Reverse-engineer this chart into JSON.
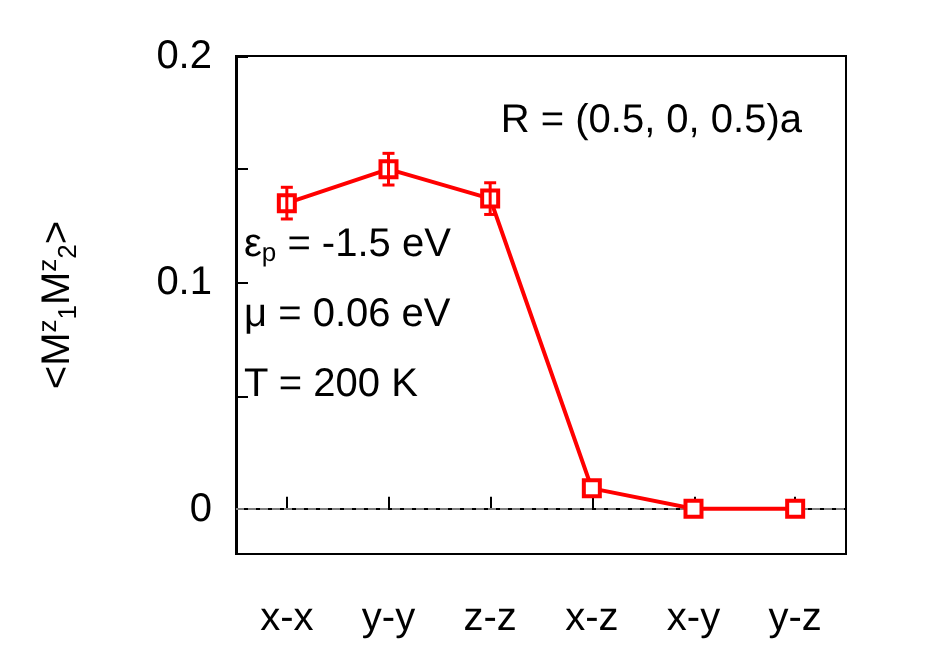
{
  "chart_data": {
    "type": "line",
    "ylabel": "<M$^{z}$$_{1}$M$^{z}$$_{2}$>",
    "categories": [
      "x-x",
      "y-y",
      "z-z",
      "x-z",
      "x-y",
      "y-z"
    ],
    "series": [
      {
        "color": "#ff0000",
        "values": [
          0.135,
          0.15,
          0.137,
          0.009,
          0,
          0
        ],
        "errors": [
          0.007,
          0.007,
          0.007,
          null,
          null,
          null
        ]
      }
    ],
    "ylim": [
      -0.02,
      0.2
    ],
    "yticks": [
      {
        "value": 0,
        "label": "0"
      },
      {
        "value": 0.05,
        "label": null
      },
      {
        "value": 0.1,
        "label": "0.1"
      },
      {
        "value": 0.15,
        "label": null
      },
      {
        "value": 0.2,
        "label": "0.2"
      }
    ],
    "ref_lines": [
      {
        "axis": "y",
        "value": 0,
        "color": "#808080",
        "line_style": "dashed"
      }
    ],
    "annotations": [
      "R = (0.5, 0, 0.5)a",
      "ε$_{p}$ = -1.5 eV",
      "μ = 0.06 eV",
      "T = 200 K"
    ],
    "marker": "square",
    "line_style": "solid"
  }
}
